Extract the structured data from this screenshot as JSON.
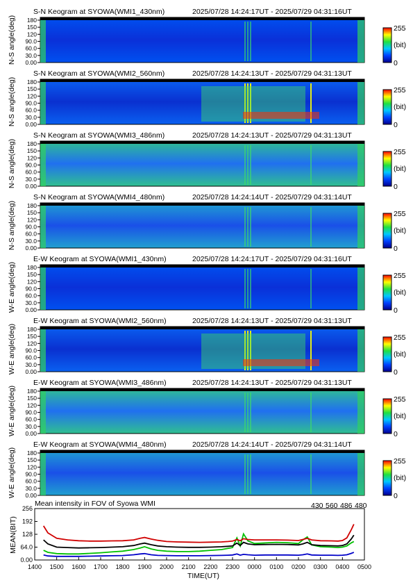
{
  "panels": [
    {
      "title": "S-N Keogram at SYOWA(WMI1_430nm)",
      "range": "2025/07/28 14:24:17UT - 2025/07/29 04:31:16UT",
      "ylabel": "N-S angle(deg)"
    },
    {
      "title": "S-N Keogram at SYOWA(WMI2_560nm)",
      "range": "2025/07/28 14:24:13UT - 2025/07/29 04:31:13UT",
      "ylabel": "N-S angle(deg)"
    },
    {
      "title": "S-N Keogram at SYOWA(WMI3_486nm)",
      "range": "2025/07/28 14:24:13UT - 2025/07/29 04:31:13UT",
      "ylabel": "N-S angle(deg)"
    },
    {
      "title": "S-N Keogram at SYOWA(WMI4_480nm)",
      "range": "2025/07/28 14:24:14UT - 2025/07/29 04:31:14UT",
      "ylabel": "N-S angle(deg)"
    },
    {
      "title": "E-W Keogram at SYOWA(WMI1_430nm)",
      "range": "2025/07/28 14:24:17UT - 2025/07/29 04:31:16UT",
      "ylabel": "W-E angle(deg)"
    },
    {
      "title": "E-W Keogram at SYOWA(WMI2_560nm)",
      "range": "2025/07/28 14:24:13UT - 2025/07/29 04:31:13UT",
      "ylabel": "W-E angle(deg)"
    },
    {
      "title": "E-W Keogram at SYOWA(WMI3_486nm)",
      "range": "2025/07/28 14:24:13UT - 2025/07/29 04:31:13UT",
      "ylabel": "W-E angle(deg)"
    },
    {
      "title": "E-W Keogram at SYOWA(WMI4_480nm)",
      "range": "2025/07/28 14:24:14UT - 2025/07/29 04:31:14UT",
      "ylabel": "W-E angle(deg)"
    }
  ],
  "keogram_yticks": [
    "0.00",
    "30.0",
    "60.0",
    "90.0",
    "120",
    "150",
    "180"
  ],
  "colorbar": {
    "max_label": "255",
    "unit_label": "(bit)",
    "min_label": "0"
  },
  "chart_data": [
    {
      "type": "heatmap",
      "description_count": 8,
      "colorscale": [
        "#00008c",
        "#0040ff",
        "#00c8ff",
        "#20e040",
        "#ffff00",
        "#ff0000"
      ],
      "zlim": [
        0,
        255
      ],
      "ylim": [
        0,
        180
      ]
    },
    {
      "type": "line",
      "title": "Mean intensity in FOV of Syowa WMI",
      "xlabel": "TIME(UT)",
      "ylabel": "MEAN(BIT)",
      "x_ticks": [
        "1400",
        "1500",
        "1600",
        "1700",
        "1800",
        "1900",
        "2000",
        "2100",
        "2200",
        "2300",
        "0000",
        "0100",
        "0200",
        "0300",
        "0400",
        "0500"
      ],
      "y_ticks": [
        "0.00",
        "64.0",
        "128",
        "192",
        "256"
      ],
      "ylim": [
        0,
        256
      ],
      "xlim": [
        14.0,
        29.0
      ],
      "x": [
        14.4,
        14.6,
        15.0,
        15.5,
        16.0,
        16.5,
        17.0,
        17.5,
        18.0,
        18.5,
        18.8,
        19.0,
        19.3,
        19.6,
        20.0,
        20.5,
        21.0,
        21.5,
        22.0,
        22.5,
        22.8,
        23.0,
        23.2,
        23.35,
        23.5,
        23.7,
        24.0,
        24.5,
        25.0,
        25.5,
        26.0,
        26.2,
        26.4,
        26.6,
        27.0,
        27.5,
        27.8,
        28.0,
        28.2,
        28.4,
        28.52
      ],
      "series": [
        {
          "name": "430",
          "color": "#0000c8",
          "values": [
            25,
            20,
            18,
            18,
            18,
            19,
            20,
            21,
            22,
            26,
            30,
            32,
            26,
            23,
            22,
            21,
            21,
            21,
            22,
            23,
            24,
            25,
            30,
            24,
            28,
            26,
            24,
            25,
            25,
            25,
            24,
            26,
            30,
            25,
            24,
            24,
            23,
            24,
            26,
            33,
            38
          ]
        },
        {
          "name": "560",
          "color": "#00c000",
          "values": [
            48,
            38,
            32,
            30,
            30,
            33,
            36,
            40,
            44,
            52,
            60,
            66,
            55,
            48,
            44,
            42,
            42,
            44,
            48,
            52,
            58,
            62,
            110,
            70,
            130,
            95,
            82,
            85,
            88,
            86,
            82,
            100,
            115,
            75,
            66,
            64,
            62,
            64,
            70,
            85,
            92
          ]
        },
        {
          "name": "486",
          "color": "#d00000",
          "values": [
            170,
            135,
            108,
            100,
            96,
            94,
            94,
            95,
            96,
            100,
            108,
            112,
            104,
            98,
            92,
            90,
            89,
            88,
            89,
            90,
            92,
            94,
            102,
            96,
            106,
            102,
            100,
            100,
            100,
            99,
            97,
            102,
            108,
            100,
            96,
            95,
            94,
            97,
            110,
            150,
            178
          ]
        },
        {
          "name": "480",
          "color": "#000000",
          "values": [
            100,
            80,
            64,
            62,
            60,
            61,
            62,
            64,
            66,
            72,
            80,
            84,
            76,
            70,
            66,
            64,
            63,
            63,
            64,
            66,
            68,
            70,
            84,
            72,
            88,
            80,
            76,
            77,
            78,
            77,
            75,
            80,
            88,
            76,
            72,
            71,
            70,
            72,
            80,
            104,
            124
          ]
        }
      ]
    }
  ]
}
